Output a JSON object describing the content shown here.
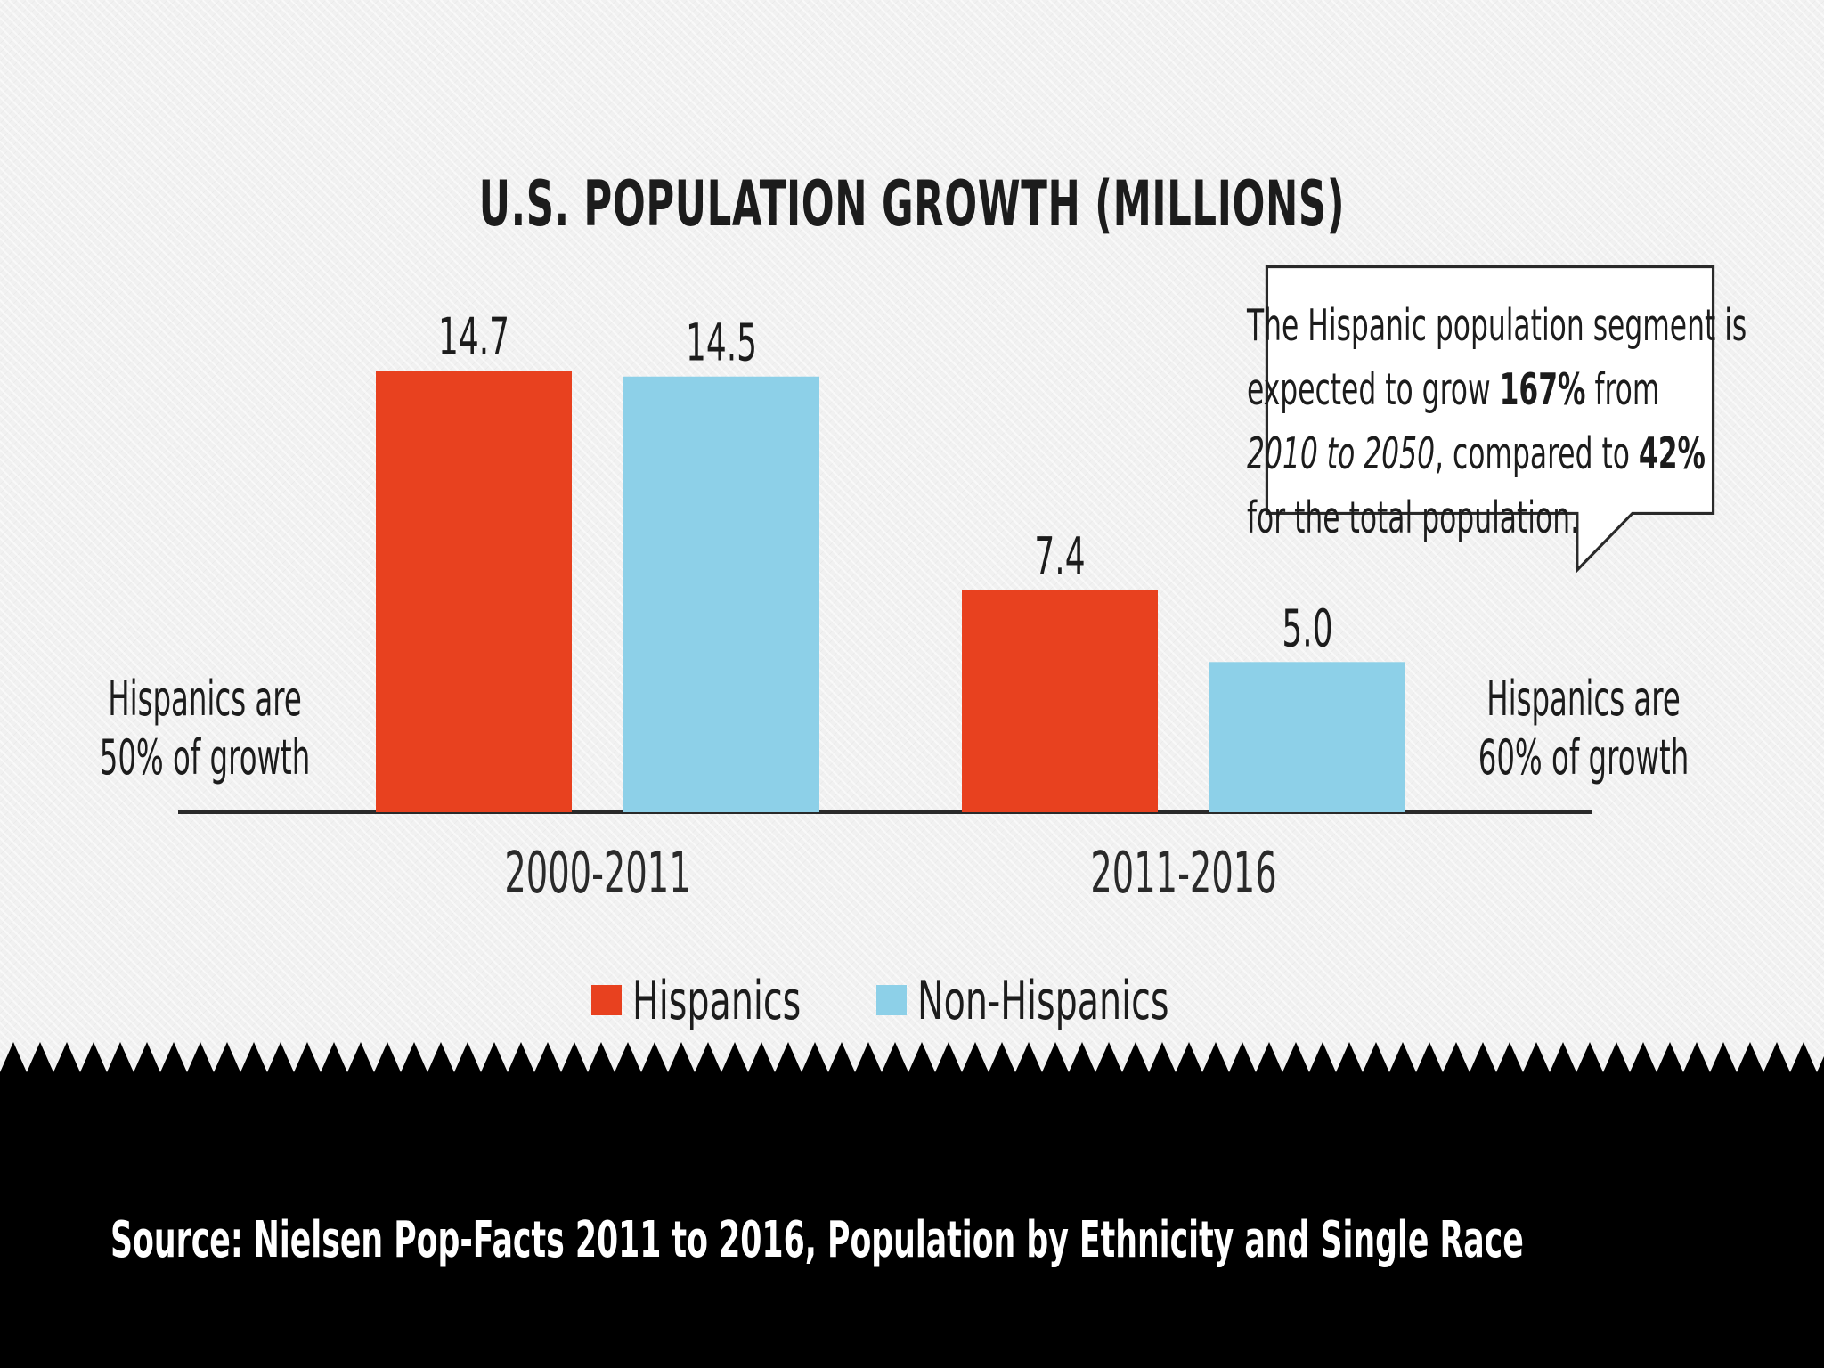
{
  "chart_data": {
    "type": "bar",
    "title": "U.S. POPULATION GROWTH (MILLIONS)",
    "categories": [
      "2000-2011",
      "2011-2016"
    ],
    "series": [
      {
        "name": "Hispanics",
        "values": [
          14.7,
          7.4
        ],
        "labels": [
          "14.7",
          "7.4"
        ],
        "color": "#e8411f"
      },
      {
        "name": "Non-Hispanics",
        "values": [
          14.5,
          5.0
        ],
        "labels": [
          "14.5",
          "5.0"
        ],
        "color": "#8dd0e8"
      }
    ],
    "ylim": [
      0,
      14.7
    ],
    "xlabel": "",
    "ylabel": "",
    "legend_position": "bottom-center"
  },
  "notes": {
    "left": {
      "line1": "Hispanics are",
      "line2": "50% of growth"
    },
    "right": {
      "line1": "Hispanics are",
      "line2": "60% of growth"
    }
  },
  "callout": {
    "line1": "The Hispanic population segment is",
    "line2_pre": "expected to grow ",
    "line2_bold": "167%",
    "line2_post": " from",
    "line3_italic": "2010 to 2050",
    "line3_mid": ", compared to ",
    "line3_bold": "42%",
    "line4": "for the total population."
  },
  "source": "Source: Nielsen Pop-Facts 2011 to 2016, Population by Ethnicity and Single Race",
  "colors": {
    "background": "#f1f1f1",
    "footer": "#000000",
    "text": "#1c1c1c"
  }
}
